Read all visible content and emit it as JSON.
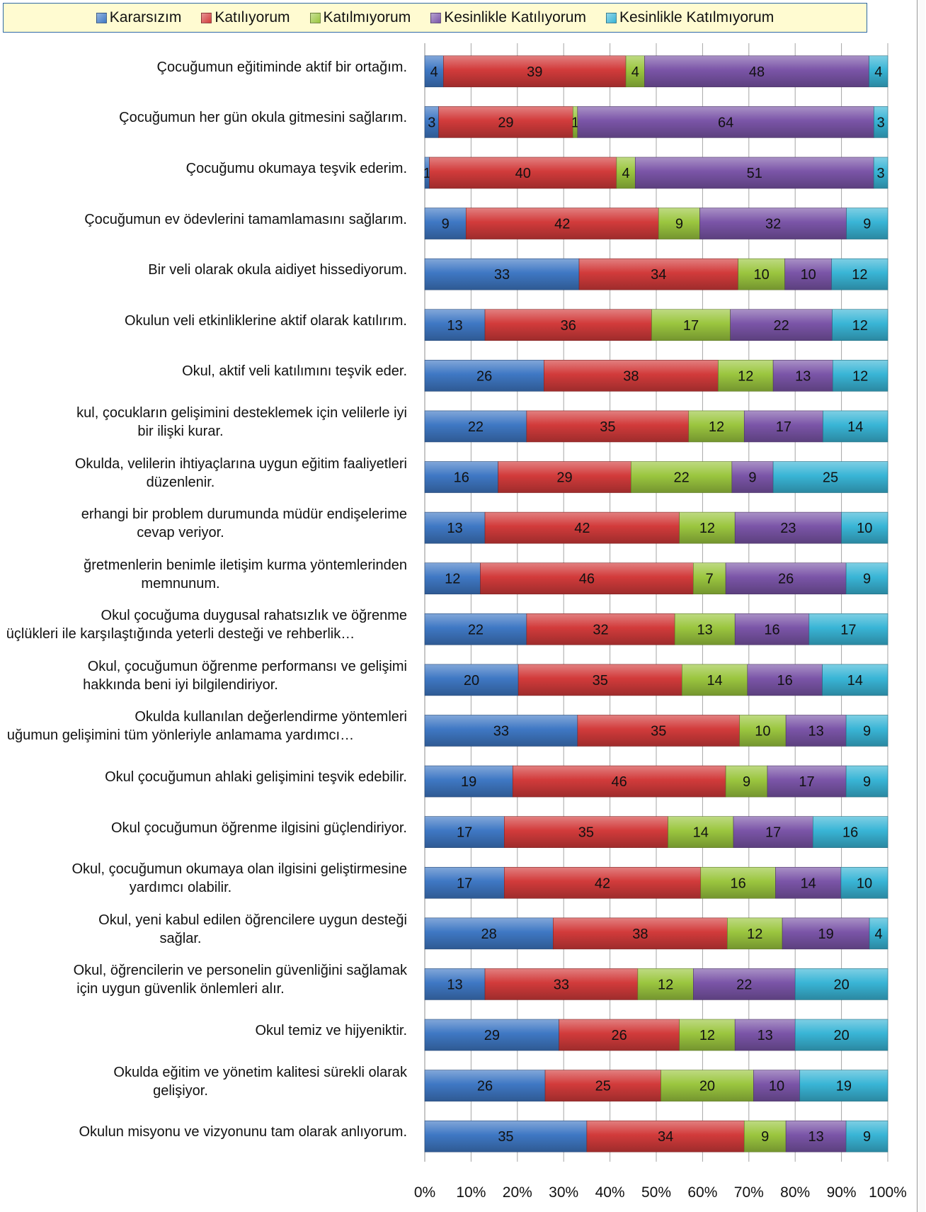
{
  "chart_data": {
    "type": "bar",
    "orientation": "horizontal",
    "stacked": "percent",
    "legend_position": "top",
    "grid": true,
    "xlim": [
      0,
      100
    ],
    "x_ticks": [
      "0%",
      "10%",
      "20%",
      "30%",
      "40%",
      "50%",
      "60%",
      "70%",
      "80%",
      "90%",
      "100%"
    ],
    "categories": [
      [
        "Çocuğumun eğitiminde aktif bir ortağım."
      ],
      [
        "Çocuğumun her gün okula gitmesini sağlarım."
      ],
      [
        "Çocuğumu okumaya teşvik ederim."
      ],
      [
        "Çocuğumun ev ödevlerini tamamlamasını sağlarım."
      ],
      [
        "Bir veli olarak okula aidiyet hissediyorum."
      ],
      [
        "Okulun veli etkinliklerine aktif olarak katılırım."
      ],
      [
        "Okul, aktif veli katılımını teşvik eder."
      ],
      [
        "kul, çocukların gelişimini desteklemek için velilerle iyi",
        "bir ilişki kurar."
      ],
      [
        "Okulda, velilerin ihtiyaçlarına uygun eğitim faaliyetleri",
        "düzenlenir."
      ],
      [
        "erhangi bir problem durumunda müdür endişelerime",
        "cevap veriyor."
      ],
      [
        "ğretmenlerin benimle iletişim kurma yöntemlerinden",
        "memnunum."
      ],
      [
        "Okul çocuğuma duygusal rahatsızlık ve öğrenme",
        "üçlükleri ile karşılaştığında yeterli desteği ve rehberlik…"
      ],
      [
        "Okul, çocuğumun öğrenme performansı ve gelişimi",
        "hakkında beni iyi bilgilendiriyor."
      ],
      [
        "Okulda kullanılan değerlendirme yöntemleri",
        "uğumun gelişimini tüm yönleriyle anlamama yardımcı…"
      ],
      [
        "Okul çocuğumun ahlaki gelişimini teşvik edebilir."
      ],
      [
        "Okul çocuğumun öğrenme ilgisini güçlendiriyor."
      ],
      [
        "Okul, çocuğumun okumaya olan ilgisini geliştirmesine",
        "yardımcı olabilir."
      ],
      [
        "Okul, yeni kabul edilen öğrencilere uygun desteği",
        "sağlar."
      ],
      [
        "Okul, öğrencilerin ve personelin güvenliğini sağlamak",
        "için uygun güvenlik önlemleri alır."
      ],
      [
        "Okul temiz ve hijyeniktir."
      ],
      [
        "Okulda eğitim ve yönetim kalitesi sürekli olarak",
        "gelişiyor."
      ],
      [
        "Okulun misyonu ve vizyonunu tam olarak anlıyorum."
      ]
    ],
    "series": [
      {
        "name": "Kararsızım",
        "color": "#3f78c4",
        "values": [
          4,
          3,
          1,
          9,
          33,
          13,
          26,
          22,
          16,
          13,
          12,
          22,
          20,
          33,
          19,
          17,
          17,
          28,
          13,
          29,
          26,
          35
        ]
      },
      {
        "name": "Katılıyorum",
        "color": "#d23b3b",
        "values": [
          39,
          29,
          40,
          42,
          34,
          36,
          38,
          35,
          29,
          42,
          46,
          32,
          35,
          35,
          46,
          35,
          42,
          38,
          33,
          26,
          25,
          34
        ]
      },
      {
        "name": "Katılmıyorum",
        "color": "#9bc63f",
        "values": [
          4,
          1,
          4,
          9,
          10,
          17,
          12,
          12,
          22,
          12,
          7,
          13,
          14,
          10,
          9,
          14,
          16,
          12,
          12,
          12,
          20,
          9
        ]
      },
      {
        "name": "Kesinlikle Katılıyorum",
        "color": "#7b55a8",
        "values": [
          48,
          64,
          51,
          32,
          10,
          22,
          13,
          17,
          9,
          23,
          26,
          16,
          16,
          13,
          17,
          17,
          14,
          19,
          22,
          13,
          10,
          13
        ]
      },
      {
        "name": "Kesinlikle Katılmıyorum",
        "color": "#39b5d6",
        "values": [
          4,
          3,
          3,
          9,
          12,
          12,
          12,
          14,
          25,
          10,
          9,
          17,
          14,
          9,
          9,
          16,
          10,
          4,
          20,
          20,
          19,
          9
        ]
      }
    ]
  }
}
